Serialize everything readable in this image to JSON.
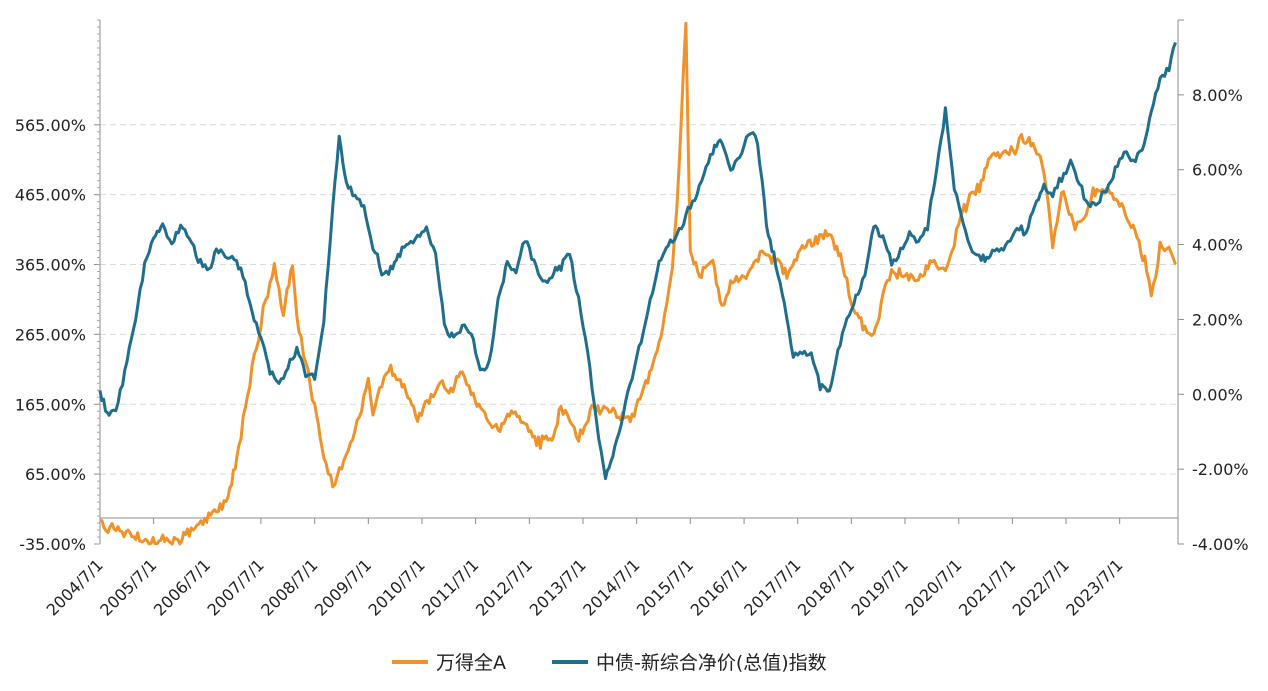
{
  "chart_data": {
    "type": "line",
    "title": "",
    "xlabel": "",
    "ylabel": "",
    "x_tick_labels": [
      "2004/7/1",
      "2005/7/1",
      "2006/7/1",
      "2007/7/1",
      "2008/7/1",
      "2009/7/1",
      "2010/7/1",
      "2011/7/1",
      "2012/7/1",
      "2013/7/1",
      "2014/7/1",
      "2015/7/1",
      "2016/7/1",
      "2017/7/1",
      "2018/7/1",
      "2019/7/1",
      "2020/7/1",
      "2021/7/1",
      "2022/7/1",
      "2023/7/1"
    ],
    "x_range": [
      "2004/7/1",
      "2024/8/1"
    ],
    "left_axis": {
      "ylim": [
        -35,
        715
      ],
      "tick_values": [
        -35,
        65,
        165,
        265,
        365,
        465,
        565
      ],
      "tick_labels": [
        "-35.00%",
        "65.00%",
        "165.00%",
        "265.00%",
        "365.00%",
        "465.00%",
        "565.00%"
      ]
    },
    "right_axis": {
      "ylim": [
        -4,
        10
      ],
      "tick_values": [
        -4,
        -2,
        0,
        2,
        4,
        6,
        8
      ],
      "tick_labels": [
        "-4.00%",
        "-2.00%",
        "0.00%",
        "2.00%",
        "4.00%",
        "6.00%",
        "8.00%"
      ]
    },
    "grid": "horizontal-dashed",
    "legend_position": "bottom",
    "series": [
      {
        "name": "万得全A",
        "axis": "left",
        "color": "#F0922A",
        "points": [
          [
            "2004/7/1",
            -8
          ],
          [
            "2004/11/1",
            -15
          ],
          [
            "2005/3/1",
            -25
          ],
          [
            "2005/6/1",
            -33
          ],
          [
            "2005/9/1",
            -28
          ],
          [
            "2005/12/1",
            -30
          ],
          [
            "2006/3/1",
            -20
          ],
          [
            "2006/6/1",
            -3
          ],
          [
            "2006/9/1",
            8
          ],
          [
            "2006/12/1",
            40
          ],
          [
            "2007/2/1",
            100
          ],
          [
            "2007/4/1",
            180
          ],
          [
            "2007/6/1",
            245
          ],
          [
            "2007/8/1",
            315
          ],
          [
            "2007/10/1",
            360
          ],
          [
            "2007/12/1",
            295
          ],
          [
            "2008/2/1",
            360
          ],
          [
            "2008/3/1",
            285
          ],
          [
            "2008/5/1",
            230
          ],
          [
            "2008/7/1",
            160
          ],
          [
            "2008/9/1",
            95
          ],
          [
            "2008/11/1",
            50
          ],
          [
            "2009/1/1",
            75
          ],
          [
            "2009/3/1",
            110
          ],
          [
            "2009/5/1",
            145
          ],
          [
            "2009/7/1",
            200
          ],
          [
            "2009/8/1",
            150
          ],
          [
            "2009/10/1",
            195
          ],
          [
            "2009/12/1",
            215
          ],
          [
            "2010/3/1",
            190
          ],
          [
            "2010/6/1",
            145
          ],
          [
            "2010/9/1",
            175
          ],
          [
            "2010/11/1",
            195
          ],
          [
            "2011/1/1",
            180
          ],
          [
            "2011/4/1",
            210
          ],
          [
            "2011/6/1",
            180
          ],
          [
            "2011/9/1",
            150
          ],
          [
            "2011/12/1",
            125
          ],
          [
            "2012/3/1",
            155
          ],
          [
            "2012/6/1",
            140
          ],
          [
            "2012/9/1",
            110
          ],
          [
            "2012/12/1",
            115
          ],
          [
            "2013/2/1",
            160
          ],
          [
            "2013/4/1",
            150
          ],
          [
            "2013/6/1",
            115
          ],
          [
            "2013/9/1",
            160
          ],
          [
            "2013/12/1",
            155
          ],
          [
            "2014/3/1",
            150
          ],
          [
            "2014/6/1",
            145
          ],
          [
            "2014/9/1",
            195
          ],
          [
            "2014/12/1",
            250
          ],
          [
            "2015/3/1",
            360
          ],
          [
            "2015/4/1",
            450
          ],
          [
            "2015/6/1",
            710
          ],
          [
            "2015/7/1",
            380
          ],
          [
            "2015/9/1",
            350
          ],
          [
            "2015/12/1",
            370
          ],
          [
            "2016/2/1",
            300
          ],
          [
            "2016/4/1",
            340
          ],
          [
            "2016/7/1",
            345
          ],
          [
            "2016/11/1",
            380
          ],
          [
            "2017/2/1",
            370
          ],
          [
            "2017/5/1",
            350
          ],
          [
            "2017/8/1",
            390
          ],
          [
            "2017/11/1",
            400
          ],
          [
            "2018/2/1",
            410
          ],
          [
            "2018/5/1",
            370
          ],
          [
            "2018/7/1",
            310
          ],
          [
            "2018/10/1",
            270
          ],
          [
            "2018/12/1",
            260
          ],
          [
            "2019/2/1",
            320
          ],
          [
            "2019/4/1",
            355
          ],
          [
            "2019/7/1",
            350
          ],
          [
            "2019/10/1",
            345
          ],
          [
            "2020/1/1",
            370
          ],
          [
            "2020/3/1",
            355
          ],
          [
            "2020/5/1",
            370
          ],
          [
            "2020/7/1",
            430
          ],
          [
            "2020/9/1",
            455
          ],
          [
            "2020/12/1",
            480
          ],
          [
            "2021/2/1",
            525
          ],
          [
            "2021/5/1",
            520
          ],
          [
            "2021/8/1",
            530
          ],
          [
            "2021/9/1",
            545
          ],
          [
            "2021/12/1",
            535
          ],
          [
            "2022/2/1",
            500
          ],
          [
            "2022/4/1",
            390
          ],
          [
            "2022/6/1",
            470
          ],
          [
            "2022/9/1",
            420
          ],
          [
            "2022/11/1",
            430
          ],
          [
            "2023/1/1",
            470
          ],
          [
            "2023/4/1",
            470
          ],
          [
            "2023/7/1",
            450
          ],
          [
            "2023/10/1",
            420
          ],
          [
            "2024/1/1",
            360
          ],
          [
            "2024/2/1",
            315
          ],
          [
            "2024/4/1",
            390
          ],
          [
            "2024/6/1",
            385
          ],
          [
            "2024/7/15",
            365
          ]
        ]
      },
      {
        "name": "中债-新综合净价(总值)指数",
        "axis": "right",
        "color": "#1F6E8C",
        "points": [
          [
            "2004/7/1",
            0.0
          ],
          [
            "2004/9/1",
            -0.6
          ],
          [
            "2004/11/1",
            -0.3
          ],
          [
            "2005/1/1",
            1.0
          ],
          [
            "2005/3/1",
            2.0
          ],
          [
            "2005/5/1",
            3.5
          ],
          [
            "2005/7/1",
            4.2
          ],
          [
            "2005/9/1",
            4.6
          ],
          [
            "2005/11/1",
            4.0
          ],
          [
            "2006/1/1",
            4.5
          ],
          [
            "2006/3/1",
            4.2
          ],
          [
            "2006/5/1",
            3.6
          ],
          [
            "2006/7/1",
            3.3
          ],
          [
            "2006/9/1",
            3.8
          ],
          [
            "2006/11/1",
            3.7
          ],
          [
            "2007/1/1",
            3.6
          ],
          [
            "2007/3/1",
            3.2
          ],
          [
            "2007/5/1",
            2.2
          ],
          [
            "2007/7/1",
            1.5
          ],
          [
            "2007/9/1",
            0.6
          ],
          [
            "2007/11/1",
            0.2
          ],
          [
            "2008/1/1",
            0.8
          ],
          [
            "2008/3/1",
            1.2
          ],
          [
            "2008/5/1",
            0.6
          ],
          [
            "2008/7/1",
            0.4
          ],
          [
            "2008/9/1",
            2.0
          ],
          [
            "2008/11/1",
            5.0
          ],
          [
            "2008/12/15",
            6.8
          ],
          [
            "2009/2/1",
            5.6
          ],
          [
            "2009/4/1",
            5.3
          ],
          [
            "2009/6/1",
            5.0
          ],
          [
            "2009/8/1",
            4.0
          ],
          [
            "2009/10/1",
            3.3
          ],
          [
            "2009/12/1",
            3.3
          ],
          [
            "2010/2/1",
            3.8
          ],
          [
            "2010/4/1",
            4.0
          ],
          [
            "2010/6/1",
            4.3
          ],
          [
            "2010/8/1",
            4.4
          ],
          [
            "2010/10/1",
            3.8
          ],
          [
            "2010/12/1",
            1.8
          ],
          [
            "2011/2/1",
            1.5
          ],
          [
            "2011/4/1",
            1.8
          ],
          [
            "2011/6/1",
            1.6
          ],
          [
            "2011/8/1",
            0.6
          ],
          [
            "2011/10/1",
            0.8
          ],
          [
            "2011/12/1",
            2.5
          ],
          [
            "2012/2/1",
            3.5
          ],
          [
            "2012/4/1",
            3.2
          ],
          [
            "2012/6/1",
            4.2
          ],
          [
            "2012/8/1",
            3.5
          ],
          [
            "2012/10/1",
            3.0
          ],
          [
            "2012/12/1",
            3.2
          ],
          [
            "2013/2/1",
            3.4
          ],
          [
            "2013/4/1",
            3.8
          ],
          [
            "2013/6/1",
            2.5
          ],
          [
            "2013/8/1",
            1.2
          ],
          [
            "2013/10/1",
            -0.8
          ],
          [
            "2013/12/1",
            -2.2
          ],
          [
            "2014/2/1",
            -1.5
          ],
          [
            "2014/4/1",
            -0.5
          ],
          [
            "2014/6/1",
            0.5
          ],
          [
            "2014/8/1",
            1.5
          ],
          [
            "2014/10/1",
            2.5
          ],
          [
            "2014/12/1",
            3.5
          ],
          [
            "2015/2/1",
            4.0
          ],
          [
            "2015/4/1",
            4.2
          ],
          [
            "2015/6/1",
            4.8
          ],
          [
            "2015/8/1",
            5.2
          ],
          [
            "2015/10/1",
            5.8
          ],
          [
            "2015/12/1",
            6.5
          ],
          [
            "2016/2/1",
            6.8
          ],
          [
            "2016/4/1",
            6.0
          ],
          [
            "2016/6/1",
            6.3
          ],
          [
            "2016/8/1",
            7.0
          ],
          [
            "2016/10/1",
            6.8
          ],
          [
            "2016/12/1",
            4.5
          ],
          [
            "2017/2/1",
            3.5
          ],
          [
            "2017/4/1",
            2.5
          ],
          [
            "2017/6/1",
            1.0
          ],
          [
            "2017/8/1",
            1.2
          ],
          [
            "2017/10/1",
            1.0
          ],
          [
            "2017/12/1",
            0.2
          ],
          [
            "2018/2/1",
            0.0
          ],
          [
            "2018/4/1",
            1.2
          ],
          [
            "2018/6/1",
            2.0
          ],
          [
            "2018/8/1",
            2.6
          ],
          [
            "2018/10/1",
            3.2
          ],
          [
            "2018/12/1",
            4.5
          ],
          [
            "2019/2/1",
            4.2
          ],
          [
            "2019/4/1",
            3.5
          ],
          [
            "2019/6/1",
            3.8
          ],
          [
            "2019/8/1",
            4.3
          ],
          [
            "2019/10/1",
            4.0
          ],
          [
            "2019/12/1",
            4.5
          ],
          [
            "2020/2/1",
            6.0
          ],
          [
            "2020/4/1",
            7.6
          ],
          [
            "2020/6/1",
            5.5
          ],
          [
            "2020/8/1",
            4.5
          ],
          [
            "2020/10/1",
            3.8
          ],
          [
            "2020/12/1",
            3.6
          ],
          [
            "2021/2/1",
            3.7
          ],
          [
            "2021/4/1",
            3.9
          ],
          [
            "2021/6/1",
            4.0
          ],
          [
            "2021/8/1",
            4.5
          ],
          [
            "2021/10/1",
            4.3
          ],
          [
            "2021/12/1",
            5.0
          ],
          [
            "2022/2/1",
            5.5
          ],
          [
            "2022/4/1",
            5.4
          ],
          [
            "2022/6/1",
            5.8
          ],
          [
            "2022/8/1",
            6.2
          ],
          [
            "2022/10/1",
            5.6
          ],
          [
            "2022/12/1",
            5.0
          ],
          [
            "2023/2/1",
            5.2
          ],
          [
            "2023/4/1",
            5.5
          ],
          [
            "2023/6/1",
            6.0
          ],
          [
            "2023/8/1",
            6.4
          ],
          [
            "2023/10/1",
            6.3
          ],
          [
            "2023/12/1",
            6.5
          ],
          [
            "2024/2/1",
            7.6
          ],
          [
            "2024/4/1",
            8.4
          ],
          [
            "2024/6/1",
            8.7
          ],
          [
            "2024/7/15",
            9.4
          ]
        ]
      }
    ]
  }
}
